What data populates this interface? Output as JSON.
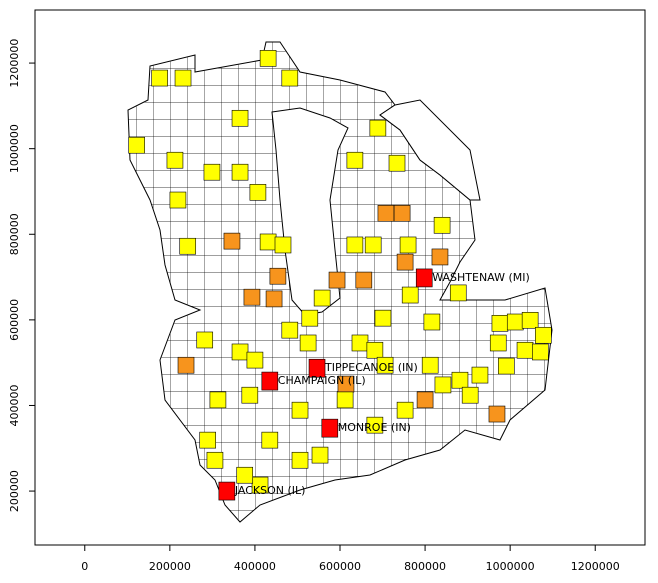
{
  "chart_data": {
    "type": "map",
    "xlim": [
      -117000,
      1317000
    ],
    "ylim": [
      74000,
      1324000
    ],
    "xticks": [
      0,
      200000,
      400000,
      600000,
      800000,
      1000000,
      1200000
    ],
    "yticks": [
      200000,
      400000,
      600000,
      800000,
      1000000,
      1200000
    ],
    "labeled_counties": [
      {
        "name": "WASHTENAW (MI)",
        "x": 798000,
        "y": 698000,
        "color": "#ff0000"
      },
      {
        "name": "TIPPECANOE (IN)",
        "x": 546000,
        "y": 487000,
        "color": "#ff0000"
      },
      {
        "name": "CHAMPAIGN (IL)",
        "x": 435000,
        "y": 457000,
        "color": "#ff0000"
      },
      {
        "name": "MONROE (IN)",
        "x": 576000,
        "y": 347000,
        "color": "#ff0000"
      },
      {
        "name": "JACKSON (IL)",
        "x": 334000,
        "y": 200000,
        "color": "#ff0000"
      }
    ],
    "counties": [
      {
        "x": 346000,
        "y": 784000,
        "color": "#f7941d"
      },
      {
        "x": 835000,
        "y": 747000,
        "color": "#f7941d"
      },
      {
        "x": 708000,
        "y": 849000,
        "color": "#f7941d"
      },
      {
        "x": 746000,
        "y": 849000,
        "color": "#f7941d"
      },
      {
        "x": 753000,
        "y": 735000,
        "color": "#f7941d"
      },
      {
        "x": 656000,
        "y": 693000,
        "color": "#f7941d"
      },
      {
        "x": 593000,
        "y": 693000,
        "color": "#f7941d"
      },
      {
        "x": 454000,
        "y": 702000,
        "color": "#f7941d"
      },
      {
        "x": 393000,
        "y": 653000,
        "color": "#f7941d"
      },
      {
        "x": 445000,
        "y": 649000,
        "color": "#f7941d"
      },
      {
        "x": 238000,
        "y": 494000,
        "color": "#f7941d"
      },
      {
        "x": 614000,
        "y": 450000,
        "color": "#f7941d"
      },
      {
        "x": 800000,
        "y": 413000,
        "color": "#f7941d"
      },
      {
        "x": 969000,
        "y": 380000,
        "color": "#f7941d"
      },
      {
        "x": 176000,
        "y": 1165000,
        "color": "#ffff00"
      },
      {
        "x": 231000,
        "y": 1165000,
        "color": "#ffff00"
      },
      {
        "x": 431000,
        "y": 1211000,
        "color": "#ffff00"
      },
      {
        "x": 482000,
        "y": 1165000,
        "color": "#ffff00"
      },
      {
        "x": 365000,
        "y": 1071000,
        "color": "#ffff00"
      },
      {
        "x": 122000,
        "y": 1008000,
        "color": "#ffff00"
      },
      {
        "x": 212000,
        "y": 973000,
        "color": "#ffff00"
      },
      {
        "x": 299000,
        "y": 945000,
        "color": "#ffff00"
      },
      {
        "x": 365000,
        "y": 945000,
        "color": "#ffff00"
      },
      {
        "x": 407000,
        "y": 898000,
        "color": "#ffff00"
      },
      {
        "x": 219000,
        "y": 880000,
        "color": "#ffff00"
      },
      {
        "x": 431000,
        "y": 782000,
        "color": "#ffff00"
      },
      {
        "x": 466000,
        "y": 775000,
        "color": "#ffff00"
      },
      {
        "x": 242000,
        "y": 772000,
        "color": "#ffff00"
      },
      {
        "x": 635000,
        "y": 973000,
        "color": "#ffff00"
      },
      {
        "x": 689000,
        "y": 1048000,
        "color": "#ffff00"
      },
      {
        "x": 734000,
        "y": 966000,
        "color": "#ffff00"
      },
      {
        "x": 635000,
        "y": 775000,
        "color": "#ffff00"
      },
      {
        "x": 678000,
        "y": 775000,
        "color": "#ffff00"
      },
      {
        "x": 760000,
        "y": 775000,
        "color": "#ffff00"
      },
      {
        "x": 840000,
        "y": 821000,
        "color": "#ffff00"
      },
      {
        "x": 878000,
        "y": 663000,
        "color": "#ffff00"
      },
      {
        "x": 765000,
        "y": 658000,
        "color": "#ffff00"
      },
      {
        "x": 558000,
        "y": 651000,
        "color": "#ffff00"
      },
      {
        "x": 529000,
        "y": 604000,
        "color": "#ffff00"
      },
      {
        "x": 701000,
        "y": 604000,
        "color": "#ffff00"
      },
      {
        "x": 816000,
        "y": 595000,
        "color": "#ffff00"
      },
      {
        "x": 976000,
        "y": 592000,
        "color": "#ffff00"
      },
      {
        "x": 1012000,
        "y": 595000,
        "color": "#ffff00"
      },
      {
        "x": 1047000,
        "y": 599000,
        "color": "#ffff00"
      },
      {
        "x": 1078000,
        "y": 564000,
        "color": "#ffff00"
      },
      {
        "x": 1035000,
        "y": 529000,
        "color": "#ffff00"
      },
      {
        "x": 972000,
        "y": 546000,
        "color": "#ffff00"
      },
      {
        "x": 647000,
        "y": 546000,
        "color": "#ffff00"
      },
      {
        "x": 682000,
        "y": 529000,
        "color": "#ffff00"
      },
      {
        "x": 525000,
        "y": 546000,
        "color": "#ffff00"
      },
      {
        "x": 482000,
        "y": 576000,
        "color": "#ffff00"
      },
      {
        "x": 365000,
        "y": 525000,
        "color": "#ffff00"
      },
      {
        "x": 282000,
        "y": 553000,
        "color": "#ffff00"
      },
      {
        "x": 400000,
        "y": 506000,
        "color": "#ffff00"
      },
      {
        "x": 706000,
        "y": 494000,
        "color": "#ffff00"
      },
      {
        "x": 812000,
        "y": 494000,
        "color": "#ffff00"
      },
      {
        "x": 882000,
        "y": 459000,
        "color": "#ffff00"
      },
      {
        "x": 929000,
        "y": 471000,
        "color": "#ffff00"
      },
      {
        "x": 991000,
        "y": 492000,
        "color": "#ffff00"
      },
      {
        "x": 1071000,
        "y": 525000,
        "color": "#ffff00"
      },
      {
        "x": 313000,
        "y": 413000,
        "color": "#ffff00"
      },
      {
        "x": 388000,
        "y": 424000,
        "color": "#ffff00"
      },
      {
        "x": 506000,
        "y": 389000,
        "color": "#ffff00"
      },
      {
        "x": 612000,
        "y": 413000,
        "color": "#ffff00"
      },
      {
        "x": 682000,
        "y": 354000,
        "color": "#ffff00"
      },
      {
        "x": 753000,
        "y": 389000,
        "color": "#ffff00"
      },
      {
        "x": 289000,
        "y": 319000,
        "color": "#ffff00"
      },
      {
        "x": 306000,
        "y": 272000,
        "color": "#ffff00"
      },
      {
        "x": 435000,
        "y": 319000,
        "color": "#ffff00"
      },
      {
        "x": 506000,
        "y": 272000,
        "color": "#ffff00"
      },
      {
        "x": 553000,
        "y": 284000,
        "color": "#ffff00"
      },
      {
        "x": 412000,
        "y": 214000,
        "color": "#ffff00"
      },
      {
        "x": 376000,
        "y": 237000,
        "color": "#ffff00"
      },
      {
        "x": 906000,
        "y": 424000,
        "color": "#ffff00"
      },
      {
        "x": 842000,
        "y": 448000,
        "color": "#ffff00"
      }
    ]
  }
}
